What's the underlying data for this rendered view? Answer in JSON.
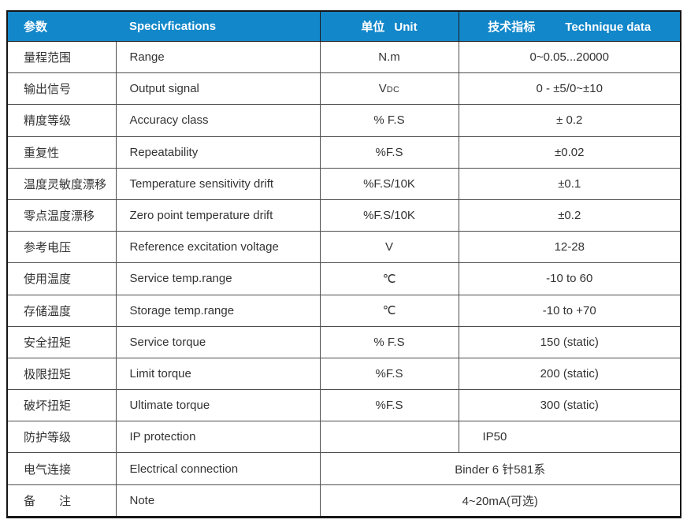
{
  "table": {
    "header": {
      "param_zh": "参数",
      "spec_en": "Specivfications",
      "unit_zh": "单位",
      "unit_en": "Unit",
      "tech_zh": "技术指标",
      "tech_en": "Technique data"
    },
    "rows": [
      {
        "param": "量程范围",
        "spec": "Range",
        "unit": "N.m",
        "value": "0~0.05...20000"
      },
      {
        "param": "输出信号",
        "spec": "Output signal",
        "unit": "V",
        "unit_small": "DC",
        "value": "0 - ±5/0~±10"
      },
      {
        "param": "精度等级",
        "spec": "Accuracy class",
        "unit": "% F.S",
        "value": "± 0.2"
      },
      {
        "param": "重复性",
        "spec": "Repeatability",
        "unit": "%F.S",
        "value": "±0.02"
      },
      {
        "param": "温度灵敏度漂移",
        "spec": "Temperature sensitivity drift",
        "unit": "%F.S/10K",
        "value": "±0.1"
      },
      {
        "param": "零点温度漂移",
        "spec": "Zero point temperature drift",
        "unit": "%F.S/10K",
        "value": "±0.2"
      },
      {
        "param": "参考电压",
        "spec": "Reference excitation voltage",
        "unit": "V",
        "value": "12-28"
      },
      {
        "param": "使用温度",
        "spec": "Service temp.range",
        "unit": "℃",
        "value": "-10 to 60"
      },
      {
        "param": "存储温度",
        "spec": "Storage temp.range",
        "unit": "℃",
        "value": "-10 to +70"
      },
      {
        "param": "安全扭矩",
        "spec": "Service torque",
        "unit": "% F.S",
        "value": "150 (static)"
      },
      {
        "param": "极限扭矩",
        "spec": "Limit torque",
        "unit": "%F.S",
        "value": "200 (static)"
      },
      {
        "param": "破坏扭矩",
        "spec": "Ultimate torque",
        "unit": "%F.S",
        "value": "300 (static)"
      },
      {
        "param": "防护等级",
        "spec": "IP protection",
        "unit": "",
        "value": "IP50",
        "value_align": "left"
      },
      {
        "param": "电气连接",
        "spec": "Electrical connection",
        "merged": true,
        "value": "Binder 6 针581系"
      },
      {
        "param": "备　　注",
        "spec": "Note",
        "merged": true,
        "value": "4~20mA(可选)"
      }
    ],
    "colors": {
      "header_bg": "#1287CA",
      "header_text": "#ffffff",
      "body_text": "#333333",
      "border_outer": "#161616",
      "border_inner": "#4e4e4e"
    }
  }
}
